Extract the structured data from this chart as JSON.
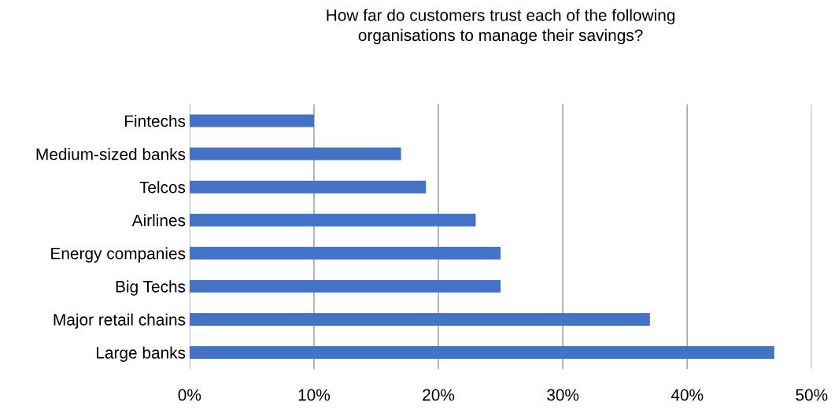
{
  "chart_data": {
    "type": "bar",
    "orientation": "horizontal",
    "title": "How far do customers trust each of the following\norganisations to manage their savings?",
    "categories": [
      "Fintechs",
      "Medium-sized banks",
      "Telcos",
      "Airlines",
      "Energy companies",
      "Big Techs",
      "Major retail chains",
      "Large banks"
    ],
    "values": [
      10,
      17,
      19,
      23,
      25,
      25,
      37,
      47
    ],
    "color": "#4472c4",
    "xlim": [
      0,
      50
    ],
    "xticks": [
      {
        "value": 0,
        "label": "0%"
      },
      {
        "value": 10,
        "label": "10%"
      },
      {
        "value": 20,
        "label": "20%"
      },
      {
        "value": 30,
        "label": "30%"
      },
      {
        "value": 40,
        "label": "40%"
      },
      {
        "value": 50,
        "label": "50%"
      }
    ],
    "grid": "x"
  }
}
